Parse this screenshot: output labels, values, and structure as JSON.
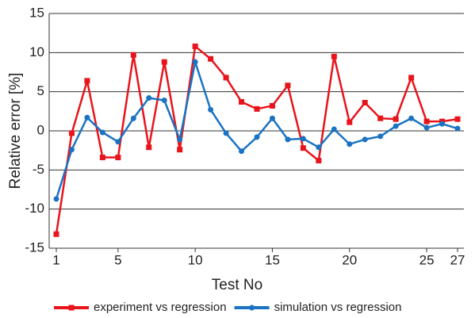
{
  "chart_data": {
    "type": "line",
    "x_label": "Test No",
    "y_label": "Relative error [%]",
    "x": [
      1,
      2,
      3,
      4,
      5,
      6,
      7,
      8,
      9,
      10,
      11,
      12,
      13,
      14,
      15,
      16,
      17,
      18,
      19,
      20,
      21,
      22,
      23,
      24,
      25,
      26,
      27
    ],
    "series": [
      {
        "name": "experiment vs regression",
        "color": "#e8141b",
        "marker": "square",
        "values": [
          -13.2,
          -0.3,
          6.4,
          -3.4,
          -3.4,
          9.7,
          -2.1,
          8.8,
          -2.4,
          10.8,
          9.2,
          6.8,
          3.7,
          2.8,
          3.2,
          5.8,
          -2.2,
          -3.8,
          9.5,
          1.1,
          3.6,
          1.6,
          1.5,
          6.8,
          1.2,
          1.2,
          1.5
        ]
      },
      {
        "name": "simulation vs regression",
        "color": "#1a73c2",
        "marker": "circle",
        "values": [
          -8.7,
          -2.4,
          1.7,
          -0.2,
          -1.4,
          1.6,
          4.2,
          3.9,
          -1.1,
          8.8,
          2.7,
          -0.3,
          -2.6,
          -0.8,
          1.6,
          -1.1,
          -1.0,
          -2.1,
          0.2,
          -1.7,
          -1.1,
          -0.7,
          0.6,
          1.6,
          0.4,
          0.9,
          0.3
        ]
      }
    ],
    "xlim": [
      1,
      27
    ],
    "xticks": [
      1,
      5,
      10,
      15,
      20,
      25,
      27
    ],
    "ylim": [
      -15,
      15
    ],
    "yticks": [
      -15,
      -10,
      -5,
      0,
      5,
      10,
      15
    ],
    "grid": true,
    "legend": "bottom"
  }
}
